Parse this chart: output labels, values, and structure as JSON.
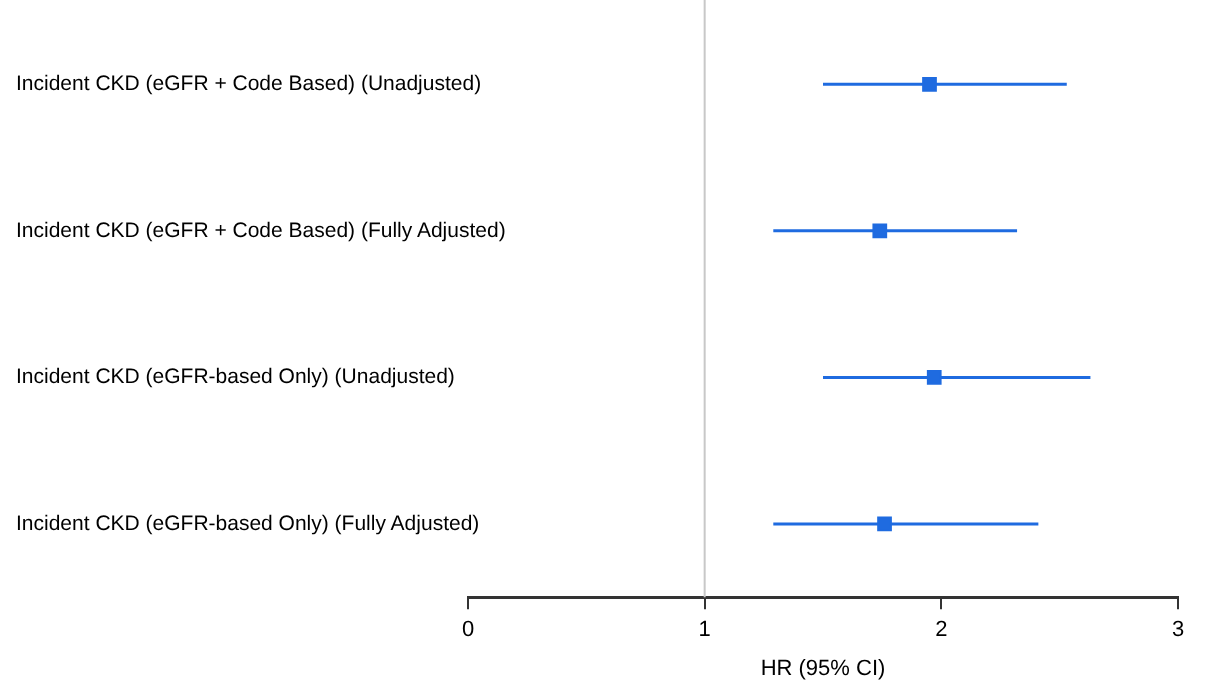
{
  "chart_data": {
    "type": "scatter",
    "orientation": "horizontal",
    "xlabel": "HR (95% CI)",
    "categories": [
      "Incident CKD (eGFR + Code Based) (Unadjusted)",
      "Incident CKD (eGFR + Code Based) (Fully Adjusted)",
      "Incident CKD (eGFR-based Only) (Unadjusted)",
      "Incident CKD (eGFR-based Only) (Fully Adjusted)"
    ],
    "series": [
      {
        "color": "#1f6be0",
        "values": [
          1.95,
          1.74,
          1.97,
          1.76
        ],
        "errors": [
          [
            1.5,
            2.53
          ],
          [
            1.29,
            2.32
          ],
          [
            1.5,
            2.63
          ],
          [
            1.29,
            2.41
          ]
        ]
      }
    ],
    "xlim": [
      0,
      3
    ],
    "xticks": [
      0,
      1,
      2,
      3
    ],
    "ref_lines": [
      {
        "axis": "x",
        "value": 1,
        "color": "#c8c8c8"
      }
    ],
    "marker": "square",
    "grid": false,
    "legend": false
  }
}
